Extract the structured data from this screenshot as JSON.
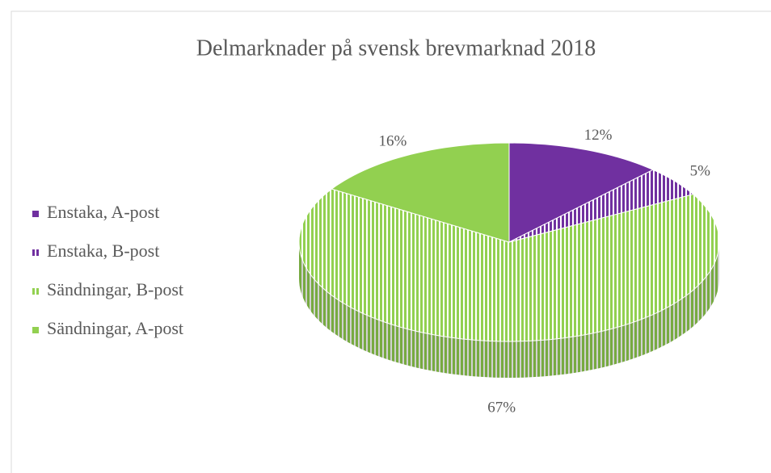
{
  "chart_data": {
    "type": "pie3d",
    "title": "Delmarknader på svensk brevmarknad 2018",
    "categories": [
      "Enstaka, A-post",
      "Enstaka, B-post",
      "Sändningar, B-post",
      "Sändningar, A-post"
    ],
    "values": [
      12,
      5,
      67,
      16
    ],
    "value_labels": [
      "12%",
      "5%",
      "67%",
      "16%"
    ],
    "colors": [
      "#7030a0",
      "#7030a0",
      "#92d050",
      "#92d050"
    ],
    "hatched": [
      false,
      true,
      true,
      false
    ],
    "legend": "left"
  }
}
